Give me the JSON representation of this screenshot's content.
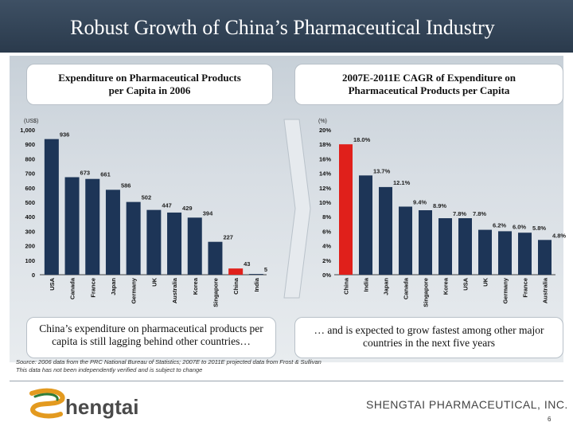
{
  "slide_title": "Robust Growth of China’s Pharmaceutical Industry",
  "left_title_line1": "Expenditure on Pharmaceutical Products",
  "left_title_line2": "per Capita in 2006",
  "right_title_line1": "2007E-2011E CAGR of Expenditure on",
  "right_title_line2": "Pharmaceutical Products per Capita",
  "left_caption": "China’s expenditure on pharmaceutical products per capita is still lagging behind other countries…",
  "right_caption": "… and is expected to grow fastest among other major countries in the next five years",
  "source_line1": "Source: 2006 data from the PRC National Bureau of Statistics; 2007E to 2011E projected data from Frost & Sullivan",
  "source_line2": "This data has not been independently verified and is subject to change",
  "company_name": "SHENGTAI PHARMACEUTICAL, INC.",
  "logo_text": "hengtai",
  "page_number": "6",
  "colors": {
    "bar": "#1d3557",
    "highlight": "#e0201b"
  },
  "chart_data": [
    {
      "type": "bar",
      "ylabel": "(US$)",
      "ylim": [
        0,
        1000
      ],
      "yticks": [
        "0",
        "100",
        "200",
        "300",
        "400",
        "500",
        "600",
        "700",
        "800",
        "900",
        "1,000"
      ],
      "categories": [
        "USA",
        "Canada",
        "France",
        "Japan",
        "Germany",
        "UK",
        "Australia",
        "Korea",
        "Singapore",
        "China",
        "India"
      ],
      "values": [
        936,
        673,
        661,
        586,
        502,
        447,
        429,
        394,
        227,
        43,
        5
      ],
      "value_labels": [
        "936",
        "673",
        "661",
        "586",
        "502",
        "447",
        "429",
        "394",
        "227",
        "43",
        "5"
      ],
      "highlight": "China"
    },
    {
      "type": "bar",
      "ylabel": "(%)",
      "ylim": [
        0,
        20
      ],
      "yticks": [
        "0%",
        "2%",
        "4%",
        "6%",
        "8%",
        "10%",
        "12%",
        "14%",
        "16%",
        "18%",
        "20%"
      ],
      "categories": [
        "China",
        "India",
        "Japan",
        "Canada",
        "Singapore",
        "Korea",
        "USA",
        "UK",
        "Germany",
        "France",
        "Australia"
      ],
      "values": [
        18.0,
        13.7,
        12.1,
        9.4,
        8.9,
        7.8,
        7.8,
        6.2,
        6.0,
        5.8,
        4.8
      ],
      "value_labels": [
        "18.0%",
        "13.7%",
        "12.1%",
        "9.4%",
        "8.9%",
        "7.8%",
        "7.8%",
        "6.2%",
        "6.0%",
        "5.8%",
        "4.8%"
      ],
      "highlight": "China"
    }
  ]
}
